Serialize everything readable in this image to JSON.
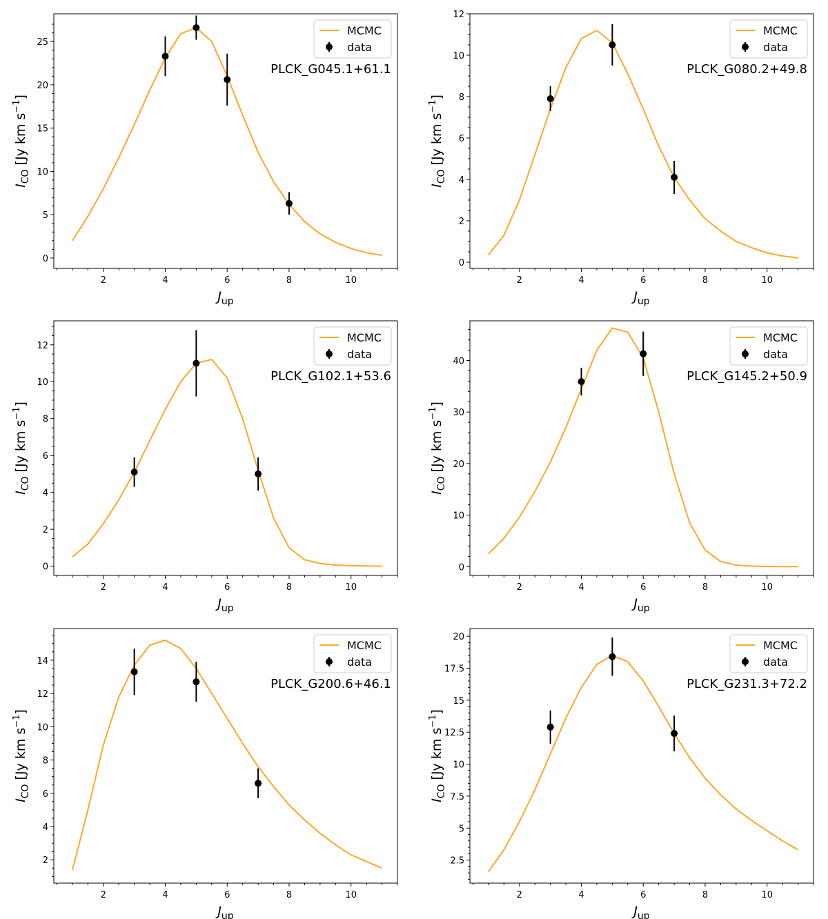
{
  "figure": {
    "colors": {
      "model": "#ffa726",
      "data": "#000000",
      "frame": "#000000",
      "legend_border": "#cccccc"
    },
    "x_label_main": "J",
    "x_label_sub": "up",
    "y_label_main": "I",
    "y_label_sub": "CO",
    "y_label_unit_a": " [Jy km s",
    "y_label_exp": "−1",
    "y_label_unit_b": "]",
    "legend": {
      "model": "MCMC",
      "data": "data"
    }
  },
  "chart_data": [
    {
      "type": "line",
      "title": "PLCK_G045.1+61.1",
      "xlim": [
        0.4,
        11.5
      ],
      "ylim": [
        -1.2,
        28.2
      ],
      "xticks": [
        2,
        4,
        6,
        8,
        10
      ],
      "yticks": [
        0,
        5,
        10,
        15,
        20,
        25
      ],
      "yminor": [
        1,
        2,
        3,
        4,
        6,
        7,
        8,
        9,
        11,
        12,
        13,
        14,
        16,
        17,
        18,
        19,
        21,
        22,
        23,
        24,
        26,
        27
      ],
      "series": [
        {
          "name": "MCMC",
          "x": [
            1,
            1.5,
            2,
            2.5,
            3,
            3.5,
            4,
            4.5,
            5,
            5.5,
            6,
            6.5,
            7,
            7.5,
            8,
            8.5,
            9,
            9.5,
            10,
            10.5,
            11
          ],
          "y": [
            2.0,
            4.8,
            8.0,
            11.6,
            15.4,
            19.4,
            23.1,
            25.9,
            26.6,
            25.0,
            21.0,
            16.5,
            12.2,
            8.8,
            6.2,
            4.2,
            2.8,
            1.8,
            1.1,
            0.6,
            0.3
          ]
        },
        {
          "name": "data",
          "x": [
            4,
            5,
            6,
            8
          ],
          "y": [
            23.3,
            26.6,
            20.6,
            6.3
          ],
          "err": [
            2.3,
            1.4,
            3.0,
            1.3
          ]
        }
      ]
    },
    {
      "type": "line",
      "title": "PLCK_G080.2+49.8",
      "xlim": [
        0.4,
        11.5
      ],
      "ylim": [
        -0.3,
        12.0
      ],
      "xticks": [
        2,
        4,
        6,
        8,
        10
      ],
      "yticks": [
        0,
        2,
        4,
        6,
        8,
        10,
        12
      ],
      "yminor": [
        0.5,
        1,
        1.5,
        2.5,
        3,
        3.5,
        4.5,
        5,
        5.5,
        6.5,
        7,
        7.5,
        8.5,
        9,
        9.5,
        10.5,
        11,
        11.5
      ],
      "series": [
        {
          "name": "MCMC",
          "x": [
            1,
            1.5,
            2,
            2.5,
            3,
            3.5,
            4,
            4.5,
            5,
            5.5,
            6,
            6.5,
            7,
            7.5,
            8,
            8.5,
            9,
            9.5,
            10,
            10.5,
            11
          ],
          "y": [
            0.35,
            1.3,
            3.0,
            5.2,
            7.4,
            9.4,
            10.8,
            11.2,
            10.6,
            9.1,
            7.4,
            5.6,
            4.1,
            3.0,
            2.1,
            1.5,
            1.0,
            0.7,
            0.45,
            0.3,
            0.2
          ]
        },
        {
          "name": "data",
          "x": [
            3,
            5,
            7
          ],
          "y": [
            7.9,
            10.5,
            4.1
          ],
          "err": [
            0.6,
            1.0,
            0.8
          ]
        }
      ]
    },
    {
      "type": "line",
      "title": "PLCK_G102.1+53.6",
      "xlim": [
        0.4,
        11.5
      ],
      "ylim": [
        -0.5,
        13.3
      ],
      "xticks": [
        2,
        4,
        6,
        8,
        10
      ],
      "yticks": [
        0,
        2,
        4,
        6,
        8,
        10,
        12
      ],
      "yminor": [
        0.5,
        1,
        1.5,
        2.5,
        3,
        3.5,
        4.5,
        5,
        5.5,
        6.5,
        7,
        7.5,
        8.5,
        9,
        9.5,
        10.5,
        11,
        11.5,
        12.5,
        13
      ],
      "series": [
        {
          "name": "MCMC",
          "x": [
            1,
            1.5,
            2,
            2.5,
            3,
            3.5,
            4,
            4.5,
            5,
            5.5,
            6,
            6.5,
            7,
            7.5,
            8,
            8.5,
            9,
            9.5,
            10,
            10.5,
            11
          ],
          "y": [
            0.5,
            1.2,
            2.3,
            3.6,
            5.1,
            6.8,
            8.5,
            10.0,
            11.0,
            11.2,
            10.2,
            8.0,
            5.2,
            2.6,
            1.0,
            0.35,
            0.15,
            0.06,
            0.03,
            0.01,
            0.0
          ]
        },
        {
          "name": "data",
          "x": [
            3,
            5,
            7
          ],
          "y": [
            5.1,
            11.0,
            5.0
          ],
          "err": [
            0.8,
            1.8,
            0.9
          ]
        }
      ]
    },
    {
      "type": "line",
      "title": "PLCK_G145.2+50.9",
      "xlim": [
        0.4,
        11.5
      ],
      "ylim": [
        -1.7,
        47.7
      ],
      "xticks": [
        2,
        4,
        6,
        8,
        10
      ],
      "yticks": [
        0,
        10,
        20,
        30,
        40
      ],
      "yminor": [
        2,
        4,
        6,
        8,
        12,
        14,
        16,
        18,
        22,
        24,
        26,
        28,
        32,
        34,
        36,
        38,
        42,
        44,
        46
      ],
      "series": [
        {
          "name": "MCMC",
          "x": [
            1,
            1.5,
            2,
            2.5,
            3,
            3.5,
            4,
            4.5,
            5,
            5.5,
            6,
            6.5,
            7,
            7.5,
            8,
            8.5,
            9,
            9.5,
            10,
            10.5,
            11
          ],
          "y": [
            2.5,
            5.5,
            9.6,
            14.6,
            20.3,
            27.0,
            34.5,
            42.0,
            46.3,
            45.5,
            40.5,
            30.0,
            18.0,
            8.5,
            3.2,
            1.0,
            0.3,
            0.1,
            0.03,
            0.01,
            0.0
          ]
        },
        {
          "name": "data",
          "x": [
            4,
            6
          ],
          "y": [
            35.9,
            41.3
          ],
          "err": [
            2.7,
            4.3
          ]
        }
      ]
    },
    {
      "type": "line",
      "title": "PLCK_G200.6+46.1",
      "xlim": [
        0.4,
        11.5
      ],
      "ylim": [
        0.6,
        15.9
      ],
      "xticks": [
        2,
        4,
        6,
        8,
        10
      ],
      "yticks": [
        2,
        4,
        6,
        8,
        10,
        12,
        14
      ],
      "yminor": [
        1,
        1.5,
        2.5,
        3,
        3.5,
        4.5,
        5,
        5.5,
        6.5,
        7,
        7.5,
        8.5,
        9,
        9.5,
        10.5,
        11,
        11.5,
        12.5,
        13,
        13.5,
        14.5,
        15,
        15.5
      ],
      "series": [
        {
          "name": "MCMC",
          "x": [
            1,
            1.5,
            2,
            2.5,
            3,
            3.5,
            4,
            4.5,
            5,
            5.5,
            6,
            6.5,
            7,
            7.5,
            8,
            8.5,
            9,
            9.5,
            10,
            10.5,
            11
          ],
          "y": [
            1.4,
            5.0,
            8.9,
            11.8,
            13.7,
            14.9,
            15.2,
            14.7,
            13.5,
            12.0,
            10.5,
            9.0,
            7.6,
            6.4,
            5.3,
            4.4,
            3.6,
            2.9,
            2.3,
            1.9,
            1.5
          ]
        },
        {
          "name": "data",
          "x": [
            3,
            5,
            7
          ],
          "y": [
            13.3,
            12.7,
            6.6
          ],
          "err": [
            1.4,
            1.2,
            0.9
          ]
        }
      ]
    },
    {
      "type": "line",
      "title": "PLCK_G231.3+72.2",
      "xlim": [
        0.4,
        11.5
      ],
      "ylim": [
        0.7,
        20.6
      ],
      "xticks": [
        2,
        4,
        6,
        8,
        10
      ],
      "yticks": [
        2.5,
        5.0,
        7.5,
        10.0,
        12.5,
        15.0,
        17.5,
        20.0
      ],
      "yminor": [
        1,
        1.5,
        2,
        3,
        3.5,
        4,
        4.5,
        5.5,
        6,
        6.5,
        7,
        8,
        8.5,
        9,
        9.5,
        10.5,
        11,
        11.5,
        12,
        13,
        13.5,
        14,
        14.5,
        15.5,
        16,
        16.5,
        17,
        18,
        18.5,
        19,
        19.5
      ],
      "series": [
        {
          "name": "MCMC",
          "x": [
            1,
            1.5,
            2,
            2.5,
            3,
            3.5,
            4,
            4.5,
            5,
            5.5,
            6,
            6.5,
            7,
            7.5,
            8,
            8.5,
            9,
            9.5,
            10,
            10.5,
            11
          ],
          "y": [
            1.6,
            3.3,
            5.5,
            8.0,
            10.8,
            13.6,
            16.0,
            17.8,
            18.5,
            18.0,
            16.5,
            14.5,
            12.4,
            10.5,
            8.9,
            7.6,
            6.5,
            5.6,
            4.8,
            4.0,
            3.3
          ]
        },
        {
          "name": "data",
          "x": [
            3,
            5,
            7
          ],
          "y": [
            12.9,
            18.4,
            12.4
          ],
          "err": [
            1.3,
            1.5,
            1.4
          ]
        }
      ]
    }
  ]
}
